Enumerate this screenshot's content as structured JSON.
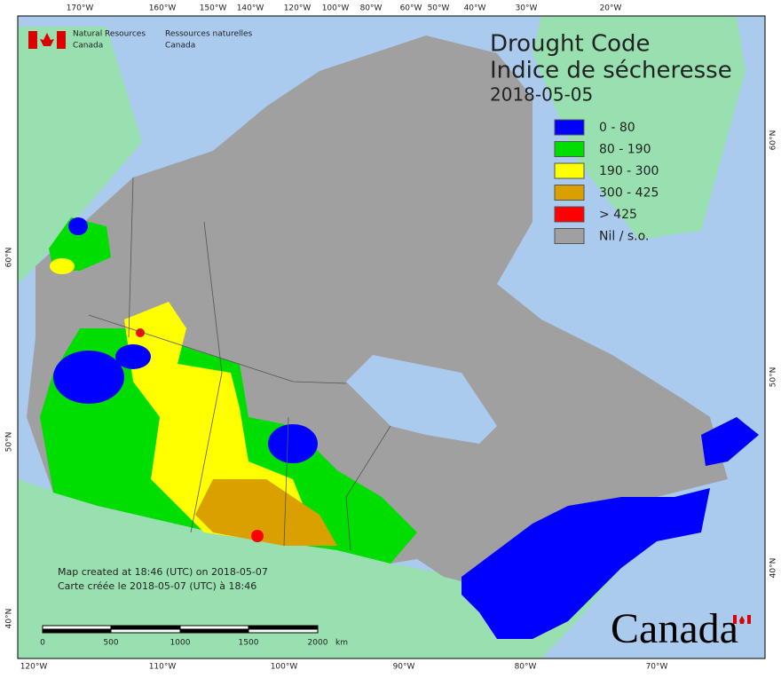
{
  "header": {
    "agency_en": "Natural Resources",
    "agency_en2": "Canada",
    "agency_fr": "Ressources naturelles",
    "agency_fr2": "Canada"
  },
  "title": {
    "en": "Drought Code",
    "fr": "Indice de sécheresse",
    "date": "2018-05-05"
  },
  "legend": [
    {
      "label": "0 - 80",
      "color": "#0000ff"
    },
    {
      "label": "80 - 190",
      "color": "#00dd00"
    },
    {
      "label": "190 - 300",
      "color": "#ffff00"
    },
    {
      "label": "300 - 425",
      "color": "#d9a000"
    },
    {
      "label": "> 425",
      "color": "#ff0000"
    },
    {
      "label": "Nil / s.o.",
      "color": "#a0a0a0"
    }
  ],
  "top_longitudes": [
    "170°W",
    "160°W",
    "150°W",
    "140°W",
    "120°W",
    "100°W",
    "80°W",
    "60°W",
    "50°W",
    "40°W",
    "30°W",
    "20°W"
  ],
  "bottom_longitudes": [
    "120°W",
    "110°W",
    "100°W",
    "90°W",
    "80°W",
    "70°W"
  ],
  "left_latitudes": [
    "60°N",
    "50°N",
    "40°N"
  ],
  "right_latitudes": [
    "60°N",
    "50°N",
    "40°N"
  ],
  "notes": [
    "Map created at 18:46 (UTC) on 2018-05-07",
    "Carte créée le 2018-05-07 (UTC) à 18:46"
  ],
  "scale_bar": {
    "ticks": [
      "0",
      "500",
      "1000",
      "1500",
      "2000"
    ],
    "unit": "km"
  },
  "wordmark": "Canada"
}
